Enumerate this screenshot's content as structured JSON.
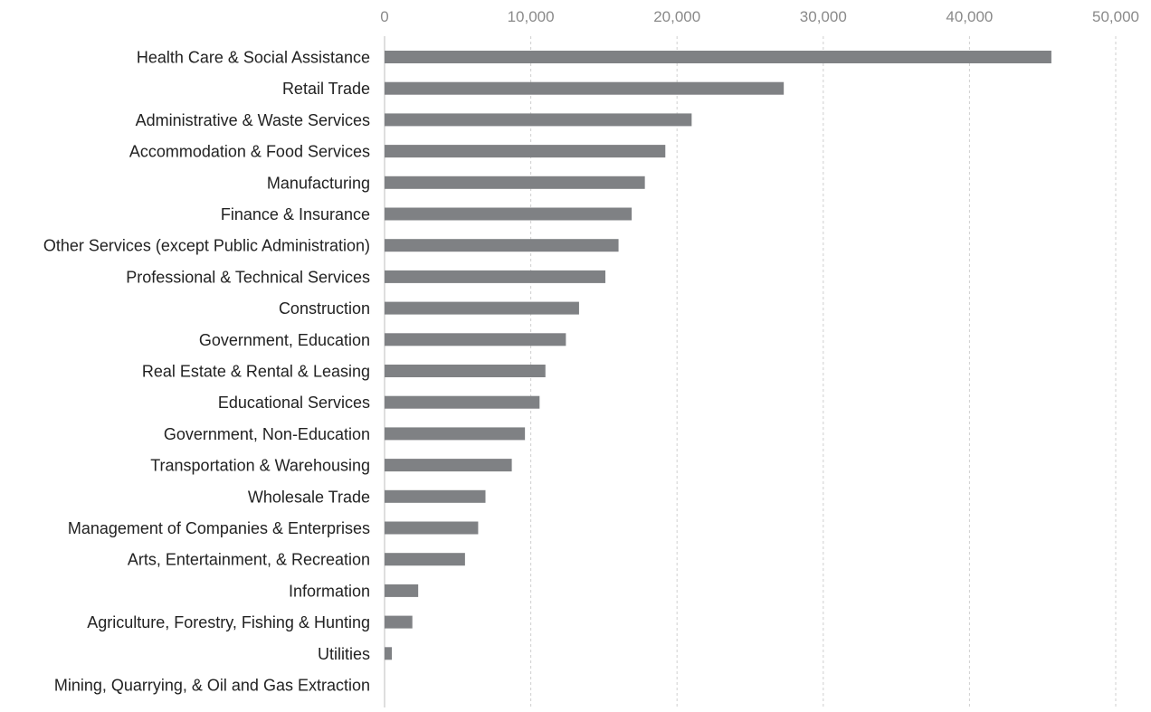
{
  "chart_data": {
    "type": "bar",
    "orientation": "horizontal",
    "title": "",
    "xlabel": "",
    "ylabel": "",
    "xlim": [
      0,
      50000
    ],
    "x_ticks": [
      0,
      10000,
      20000,
      30000,
      40000,
      50000
    ],
    "x_tick_labels": [
      "0",
      "10,000",
      "20,000",
      "30,000",
      "40,000",
      "50,000"
    ],
    "x_axis_position": "top",
    "grid": "vertical dashed",
    "legend": "none",
    "bar_color": "#7f8184",
    "categories": [
      "Health Care & Social Assistance",
      "Retail Trade",
      "Administrative & Waste Services",
      "Accommodation & Food Services",
      "Manufacturing",
      "Finance & Insurance",
      "Other Services (except Public Administration)",
      "Professional & Technical Services",
      "Construction",
      "Government, Education",
      "Real Estate & Rental & Leasing",
      "Educational Services",
      "Government, Non-Education",
      "Transportation & Warehousing",
      "Wholesale Trade",
      "Management of Companies & Enterprises",
      "Arts, Entertainment, & Recreation",
      "Information",
      "Agriculture, Forestry, Fishing & Hunting",
      "Utilities",
      "Mining, Quarrying, & Oil and Gas Extraction"
    ],
    "values": [
      45600,
      27300,
      21000,
      19200,
      17800,
      16900,
      16000,
      15100,
      13300,
      12400,
      11000,
      10600,
      9600,
      8700,
      6900,
      6400,
      5500,
      2300,
      1900,
      500,
      0
    ]
  }
}
